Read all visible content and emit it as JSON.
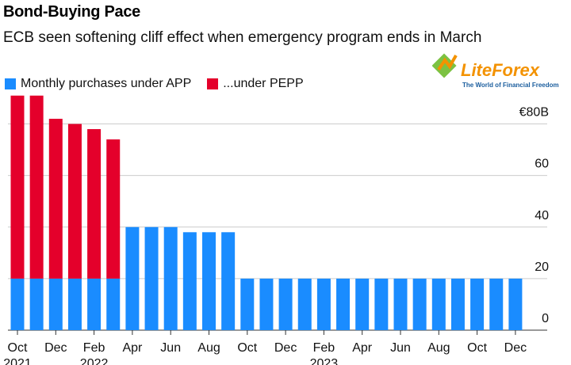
{
  "chart_data": {
    "type": "stacked_bar",
    "title": "Bond-Buying Pace",
    "subtitle": "ECB seen softening cliff effect when emergency program ends in March",
    "categories": [
      "Oct",
      null,
      "Dec",
      null,
      "Feb",
      null,
      "Apr",
      null,
      "Jun",
      null,
      "Aug",
      null,
      "Oct",
      null,
      "Dec",
      null,
      "Feb",
      null,
      "Apr",
      null,
      "Jun",
      null,
      "Aug",
      null,
      "Oct",
      null,
      "Dec"
    ],
    "category_years": [
      "2021",
      null,
      null,
      null,
      "2022",
      null,
      null,
      null,
      null,
      null,
      null,
      null,
      null,
      null,
      null,
      null,
      "2023",
      null,
      null,
      null,
      null,
      null,
      null,
      null,
      null,
      null,
      null
    ],
    "series": [
      {
        "name": "Monthly purchases under APP",
        "color": "#1a8cff",
        "values": [
          20,
          20,
          20,
          20,
          20,
          20,
          40,
          40,
          40,
          38,
          38,
          38,
          20,
          20,
          20,
          20,
          20,
          20,
          20,
          20,
          20,
          20,
          20,
          20,
          20,
          20,
          20
        ]
      },
      {
        "name": "...under PEPP",
        "color": "#e4002b",
        "values": [
          71,
          71,
          62,
          60,
          58,
          54,
          0,
          0,
          0,
          0,
          0,
          0,
          0,
          0,
          0,
          0,
          0,
          0,
          0,
          0,
          0,
          0,
          0,
          0,
          0,
          0,
          0
        ]
      }
    ],
    "ylim": [
      0,
      90
    ],
    "yticks": [
      0,
      20,
      40,
      60,
      {
        "value": 80,
        "label": "€80B"
      }
    ],
    "grid": true,
    "watermark": {
      "brand": "LiteForex",
      "slogan": "The World of Financial Freedom"
    }
  }
}
